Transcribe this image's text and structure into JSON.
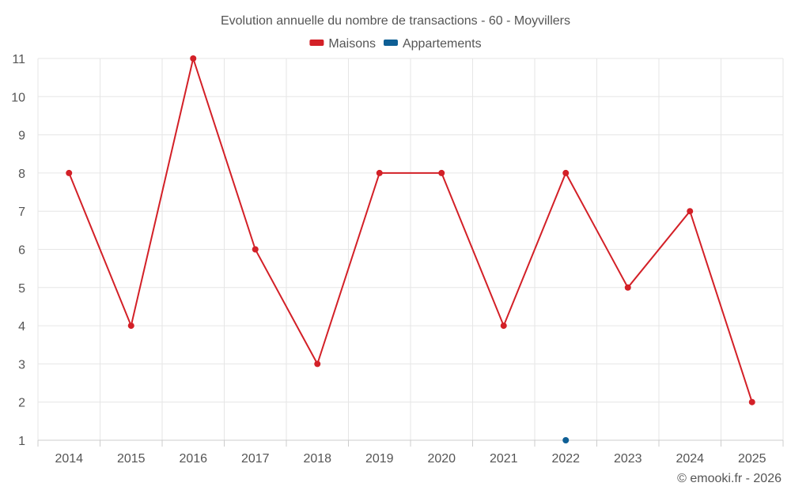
{
  "chart_data": {
    "type": "line",
    "title": "Evolution annuelle du nombre de transactions - 60 - Moyvillers",
    "categories": [
      "2014",
      "2015",
      "2016",
      "2017",
      "2018",
      "2019",
      "2020",
      "2021",
      "2022",
      "2023",
      "2024",
      "2025"
    ],
    "series": [
      {
        "name": "Maisons",
        "color": "#d32027",
        "values": [
          8,
          4,
          11,
          6,
          3,
          8,
          8,
          4,
          8,
          5,
          7,
          2
        ]
      },
      {
        "name": "Appartements",
        "color": "#0e5f95",
        "values": [
          null,
          null,
          null,
          null,
          null,
          null,
          null,
          null,
          1,
          null,
          null,
          null
        ]
      }
    ],
    "yticks": [
      "1",
      "2",
      "3",
      "4",
      "5",
      "6",
      "7",
      "8",
      "9",
      "10",
      "11"
    ],
    "ylim": [
      1,
      11
    ],
    "grid": true,
    "legend_position": "top-center",
    "credit": "© emooki.fr - 2026"
  }
}
